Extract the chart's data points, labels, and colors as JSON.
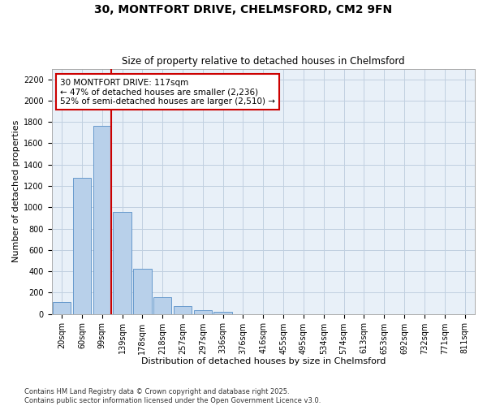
{
  "title_line1": "30, MONTFORT DRIVE, CHELMSFORD, CM2 9FN",
  "title_line2": "Size of property relative to detached houses in Chelmsford",
  "xlabel": "Distribution of detached houses by size in Chelmsford",
  "ylabel": "Number of detached properties",
  "bar_labels": [
    "20sqm",
    "60sqm",
    "99sqm",
    "139sqm",
    "178sqm",
    "218sqm",
    "257sqm",
    "297sqm",
    "336sqm",
    "376sqm",
    "416sqm",
    "455sqm",
    "495sqm",
    "534sqm",
    "574sqm",
    "613sqm",
    "653sqm",
    "692sqm",
    "732sqm",
    "771sqm",
    "811sqm"
  ],
  "bar_values": [
    110,
    1280,
    1760,
    960,
    420,
    155,
    70,
    38,
    20,
    0,
    0,
    0,
    0,
    0,
    0,
    0,
    0,
    0,
    0,
    0,
    0
  ],
  "bar_color": "#b8d0ea",
  "bar_edge_color": "#6699cc",
  "grid_color": "#c0d0e0",
  "background_color": "#e8f0f8",
  "vline_x_bar": 2,
  "vline_color": "#cc0000",
  "annotation_text": "30 MONTFORT DRIVE: 117sqm\n← 47% of detached houses are smaller (2,236)\n52% of semi-detached houses are larger (2,510) →",
  "annotation_box_facecolor": "#ffffff",
  "annotation_box_edgecolor": "#cc0000",
  "ylim": [
    0,
    2300
  ],
  "yticks": [
    0,
    200,
    400,
    600,
    800,
    1000,
    1200,
    1400,
    1600,
    1800,
    2000,
    2200
  ],
  "footer_line1": "Contains HM Land Registry data © Crown copyright and database right 2025.",
  "footer_line2": "Contains public sector information licensed under the Open Government Licence v3.0.",
  "title_fontsize": 10,
  "subtitle_fontsize": 8.5,
  "axis_label_fontsize": 8,
  "tick_fontsize": 7,
  "annotation_fontsize": 7.5,
  "footer_fontsize": 6
}
